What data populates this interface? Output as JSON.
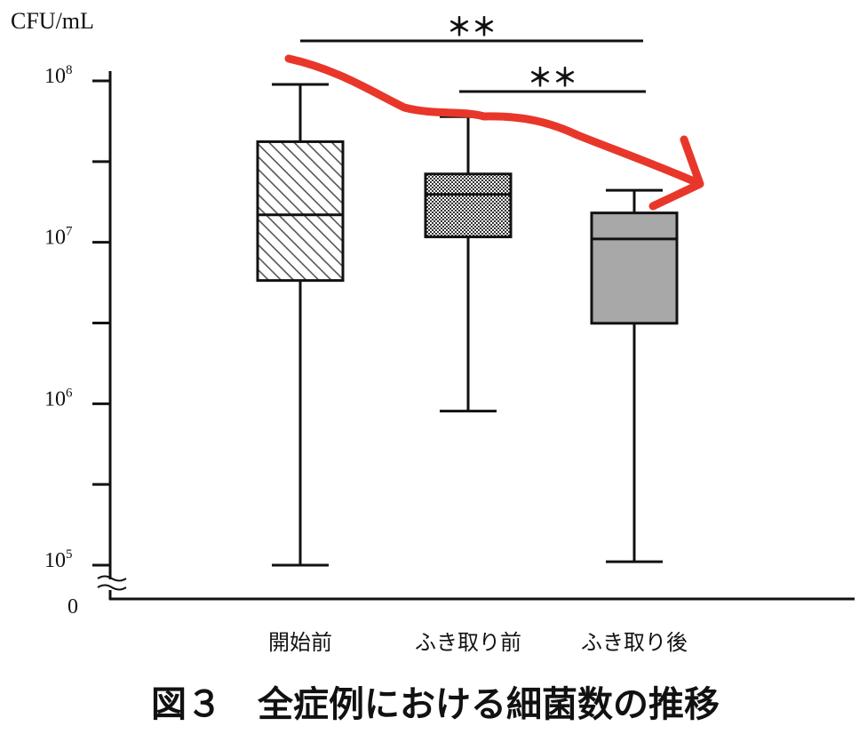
{
  "chart_data": {
    "type": "boxplot",
    "title": "図３　全症例における細菌数の推移",
    "ylabel": "CFU/mL",
    "yscale": "log",
    "ylim": [
      100000,
      100000000
    ],
    "ytick_labels": [
      {
        "base": "10",
        "exp": "8",
        "value": 100000000
      },
      {
        "base": "10",
        "exp": "7",
        "value": 10000000
      },
      {
        "base": "10",
        "exp": "6",
        "value": 1000000
      },
      {
        "base": "10",
        "exp": "5",
        "value": 100000
      }
    ],
    "axis_break_label": "0",
    "categories": [
      "開始前",
      "ふき取り前",
      "ふき取り後"
    ],
    "boxes": [
      {
        "category": "開始前",
        "min": 100000,
        "q1": 5800000,
        "median": 14800000,
        "q3": 42000000,
        "max": 95000000,
        "fill": "hatch"
      },
      {
        "category": "ふき取り前",
        "min": 900000,
        "q1": 10800000,
        "median": 19800000,
        "q3": 26500000,
        "max": 60000000,
        "fill": "checker"
      },
      {
        "category": "ふき取り後",
        "min": 105000,
        "q1": 3150000,
        "median": 10500000,
        "q3": 15200000,
        "max": 21000000,
        "fill": "gray"
      }
    ],
    "significance": [
      {
        "from": "開始前",
        "to": "ふき取り後",
        "label": "＊＊"
      },
      {
        "from": "ふき取り前",
        "to": "ふき取り後",
        "label": "＊＊"
      }
    ],
    "colors": {
      "axis": "#111111",
      "box_gray": "#a8a8a8",
      "annotation_arrow": "#e8372a"
    }
  }
}
